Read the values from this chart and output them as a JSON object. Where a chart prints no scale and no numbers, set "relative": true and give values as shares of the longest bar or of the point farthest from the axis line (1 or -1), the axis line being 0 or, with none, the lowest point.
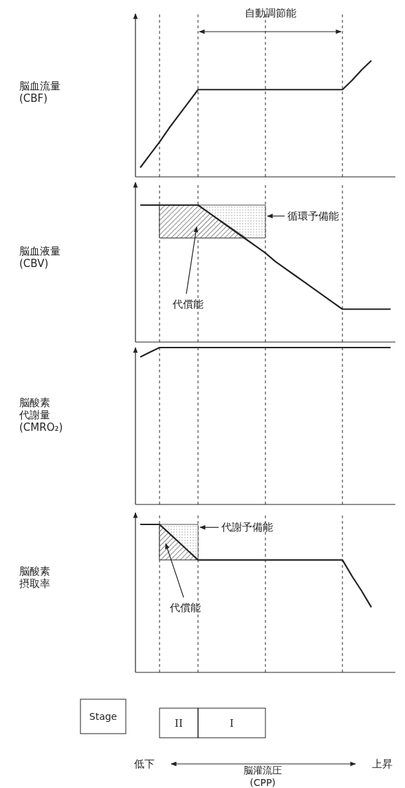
{
  "chart_data": [
    {
      "type": "line",
      "relative": true,
      "grid": "x",
      "ylabel": "脳血流量\n(CBF)",
      "tick_labels": false,
      "annotations": [
        "自動調節能"
      ],
      "categories": [
        null,
        null,
        null,
        null,
        null,
        null,
        null,
        null,
        null,
        null,
        null,
        null,
        null,
        null,
        null,
        null,
        null,
        null,
        null,
        null,
        null,
        null,
        null,
        null,
        null,
        null,
        null
      ],
      "series": [
        {
          "color": "#222222",
          "values": [
            0.08,
            0.19,
            0.3,
            0.42,
            0.53,
            0.64,
            0.75,
            0.75,
            0.75,
            0.75,
            0.75,
            0.75,
            0.75,
            0.75,
            0.75,
            0.75,
            0.75,
            0.75,
            0.75,
            0.75,
            0.75,
            0.75,
            0.83,
            0.92,
            1,
            null,
            null
          ]
        }
      ]
    },
    {
      "type": "line",
      "relative": true,
      "grid": "x",
      "ylabel": "脳血液量\n(CBV)",
      "tick_labels": false,
      "annotations": [
        "循環予備能",
        "代償能"
      ],
      "categories": [
        null,
        null,
        null,
        null,
        null,
        null,
        null,
        null,
        null,
        null,
        null,
        null,
        null,
        null,
        null,
        null,
        null,
        null,
        null,
        null,
        null,
        null,
        null,
        null,
        null,
        null,
        null
      ],
      "series": [
        {
          "color": "#222222",
          "values": [
            1,
            1,
            1,
            1,
            1,
            1,
            1,
            0.95,
            0.9,
            0.85,
            0.8,
            0.75,
            0.7,
            0.65,
            0.59,
            0.54,
            0.49,
            0.44,
            0.39,
            0.34,
            0.29,
            0.24,
            0.24,
            0.24,
            0.24,
            0.24,
            0.24
          ]
        }
      ]
    },
    {
      "type": "line",
      "relative": true,
      "grid": "x",
      "ylabel": "脳酸素代謝量\n(CMRO₂)",
      "tick_labels": false,
      "categories": [
        null,
        null,
        null,
        null,
        null,
        null,
        null,
        null,
        null,
        null,
        null,
        null,
        null,
        null,
        null,
        null,
        null,
        null,
        null,
        null,
        null,
        null,
        null,
        null,
        null,
        null,
        null
      ],
      "series": [
        {
          "color": "#222222",
          "values": [
            0.94,
            0.97,
            1,
            1,
            1,
            1,
            1,
            1,
            1,
            1,
            1,
            1,
            1,
            1,
            1,
            1,
            1,
            1,
            1,
            1,
            1,
            1,
            1,
            1,
            1,
            1,
            1
          ]
        }
      ]
    },
    {
      "type": "line",
      "relative": true,
      "grid": "x",
      "ylabel": "脳酸素摂取率",
      "xlabel": "脳灌流圧\n(CPP)",
      "tick_labels": false,
      "annotations": [
        "代謝予備能",
        "代償能",
        "Stage",
        "II",
        "I",
        "低下",
        "上昇"
      ],
      "categories": [
        null,
        null,
        null,
        null,
        null,
        null,
        null,
        null,
        null,
        null,
        null,
        null,
        null,
        null,
        null,
        null,
        null,
        null,
        null,
        null,
        null,
        null,
        null,
        null,
        null,
        null,
        null
      ],
      "series": [
        {
          "color": "#222222",
          "values": [
            1,
            1,
            1,
            0.94,
            0.88,
            0.82,
            0.76,
            0.76,
            0.76,
            0.76,
            0.76,
            0.76,
            0.76,
            0.76,
            0.76,
            0.76,
            0.76,
            0.76,
            0.76,
            0.76,
            0.76,
            0.76,
            0.65,
            0.55,
            0.44,
            null,
            null
          ]
        }
      ]
    }
  ]
}
